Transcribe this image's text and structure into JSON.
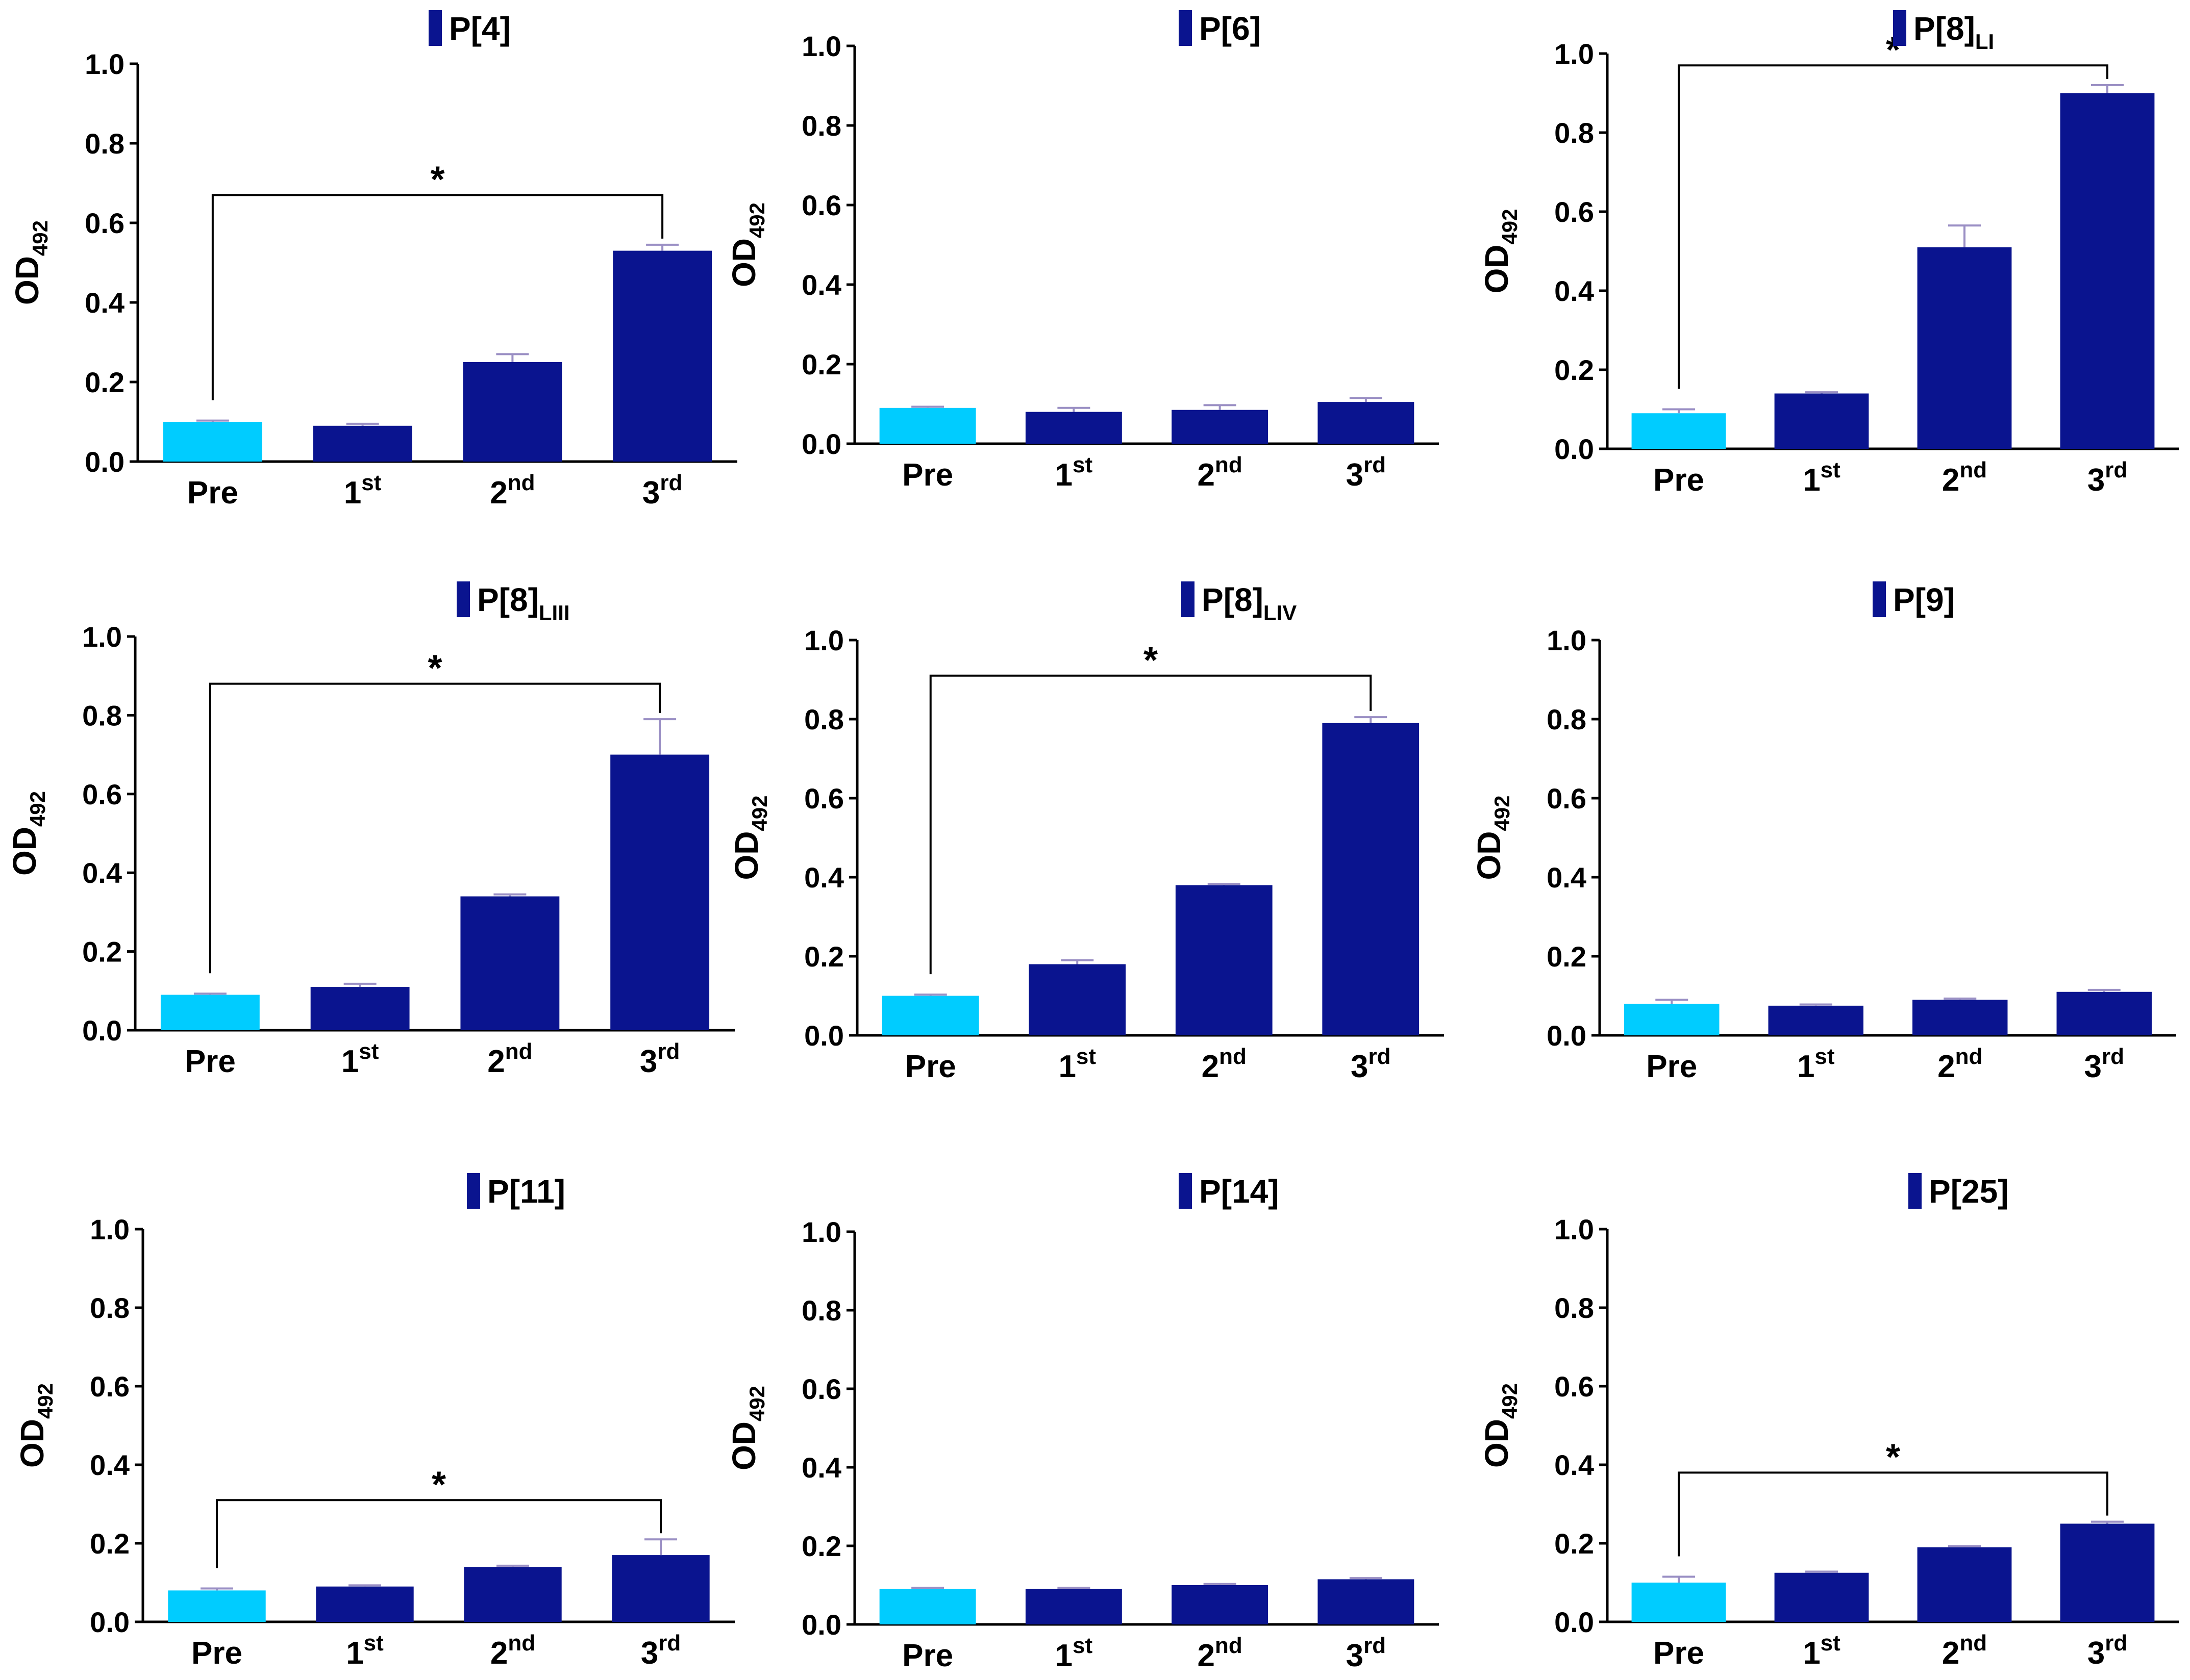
{
  "chart_data": [
    {
      "type": "bar",
      "legend": "P[4]",
      "legend_sub": "",
      "ylabel": "OD",
      "ylabel_sub": "492",
      "ylim": [
        0,
        1.0
      ],
      "yticks": [
        "0.0",
        "0.2",
        "0.4",
        "0.6",
        "0.8",
        "1.0"
      ],
      "categories": [
        {
          "base": "Pre",
          "sup": ""
        },
        {
          "base": "1",
          "sup": "st"
        },
        {
          "base": "2",
          "sup": "nd"
        },
        {
          "base": "3",
          "sup": "rd"
        }
      ],
      "values": [
        0.1,
        0.09,
        0.25,
        0.53
      ],
      "errors": [
        0.003,
        0.005,
        0.02,
        0.015
      ],
      "significance": {
        "from": 0,
        "to": 3,
        "y": 0.67,
        "label": "*"
      }
    },
    {
      "type": "bar",
      "legend": "P[6]",
      "legend_sub": "",
      "ylabel": "OD",
      "ylabel_sub": "492",
      "ylim": [
        0,
        1.0
      ],
      "yticks": [
        "0.0",
        "0.2",
        "0.4",
        "0.6",
        "0.8",
        "1.0"
      ],
      "categories": [
        {
          "base": "Pre",
          "sup": ""
        },
        {
          "base": "1",
          "sup": "st"
        },
        {
          "base": "2",
          "sup": "nd"
        },
        {
          "base": "3",
          "sup": "rd"
        }
      ],
      "values": [
        0.09,
        0.08,
        0.085,
        0.105
      ],
      "errors": [
        0.003,
        0.01,
        0.012,
        0.01
      ],
      "significance": null
    },
    {
      "type": "bar",
      "legend": "P[8]",
      "legend_sub": "LI",
      "ylabel": "OD",
      "ylabel_sub": "492",
      "ylim": [
        0,
        1.0
      ],
      "yticks": [
        "0.0",
        "0.2",
        "0.4",
        "0.6",
        "0.8",
        "1.0"
      ],
      "categories": [
        {
          "base": "Pre",
          "sup": ""
        },
        {
          "base": "1",
          "sup": "st"
        },
        {
          "base": "2",
          "sup": "nd"
        },
        {
          "base": "3",
          "sup": "rd"
        }
      ],
      "values": [
        0.09,
        0.14,
        0.51,
        0.9
      ],
      "errors": [
        0.01,
        0.003,
        0.055,
        0.02
      ],
      "significance": {
        "from": 0,
        "to": 3,
        "y": 0.97,
        "label": "*"
      }
    },
    {
      "type": "bar",
      "legend": "P[8]",
      "legend_sub": "LIII",
      "ylabel": "OD",
      "ylabel_sub": "492",
      "ylim": [
        0,
        1.0
      ],
      "yticks": [
        "0.0",
        "0.2",
        "0.4",
        "0.6",
        "0.8",
        "1.0"
      ],
      "categories": [
        {
          "base": "Pre",
          "sup": ""
        },
        {
          "base": "1",
          "sup": "st"
        },
        {
          "base": "2",
          "sup": "nd"
        },
        {
          "base": "3",
          "sup": "rd"
        }
      ],
      "values": [
        0.09,
        0.11,
        0.34,
        0.7
      ],
      "errors": [
        0.003,
        0.008,
        0.005,
        0.09
      ],
      "significance": {
        "from": 0,
        "to": 3,
        "y": 0.88,
        "label": "*"
      }
    },
    {
      "type": "bar",
      "legend": "P[8]",
      "legend_sub": "LIV",
      "ylabel": "OD",
      "ylabel_sub": "492",
      "ylim": [
        0,
        1.0
      ],
      "yticks": [
        "0.0",
        "0.2",
        "0.4",
        "0.6",
        "0.8",
        "1.0"
      ],
      "categories": [
        {
          "base": "Pre",
          "sup": ""
        },
        {
          "base": "1",
          "sup": "st"
        },
        {
          "base": "2",
          "sup": "nd"
        },
        {
          "base": "3",
          "sup": "rd"
        }
      ],
      "values": [
        0.1,
        0.18,
        0.38,
        0.79
      ],
      "errors": [
        0.003,
        0.01,
        0.003,
        0.015
      ],
      "significance": {
        "from": 0,
        "to": 3,
        "y": 0.91,
        "label": "*"
      }
    },
    {
      "type": "bar",
      "legend": "P[9]",
      "legend_sub": "",
      "ylabel": "OD",
      "ylabel_sub": "492",
      "ylim": [
        0,
        1.0
      ],
      "yticks": [
        "0.0",
        "0.2",
        "0.4",
        "0.6",
        "0.8",
        "1.0"
      ],
      "categories": [
        {
          "base": "Pre",
          "sup": ""
        },
        {
          "base": "1",
          "sup": "st"
        },
        {
          "base": "2",
          "sup": "nd"
        },
        {
          "base": "3",
          "sup": "rd"
        }
      ],
      "values": [
        0.08,
        0.075,
        0.09,
        0.11
      ],
      "errors": [
        0.01,
        0.003,
        0.003,
        0.005
      ],
      "significance": null
    },
    {
      "type": "bar",
      "legend": "P[11]",
      "legend_sub": "",
      "ylabel": "OD",
      "ylabel_sub": "492",
      "ylim": [
        0,
        1.0
      ],
      "yticks": [
        "0.0",
        "0.2",
        "0.4",
        "0.6",
        "0.8",
        "1.0"
      ],
      "categories": [
        {
          "base": "Pre",
          "sup": ""
        },
        {
          "base": "1",
          "sup": "st"
        },
        {
          "base": "2",
          "sup": "nd"
        },
        {
          "base": "3",
          "sup": "rd"
        }
      ],
      "values": [
        0.08,
        0.09,
        0.14,
        0.17
      ],
      "errors": [
        0.005,
        0.003,
        0.003,
        0.04
      ],
      "significance": {
        "from": 0,
        "to": 3,
        "y": 0.31,
        "label": "*"
      }
    },
    {
      "type": "bar",
      "legend": "P[14]",
      "legend_sub": "",
      "ylabel": "OD",
      "ylabel_sub": "492",
      "ylim": [
        0,
        1.0
      ],
      "yticks": [
        "0.0",
        "0.2",
        "0.4",
        "0.6",
        "0.8",
        "1.0"
      ],
      "categories": [
        {
          "base": "Pre",
          "sup": ""
        },
        {
          "base": "1",
          "sup": "st"
        },
        {
          "base": "2",
          "sup": "nd"
        },
        {
          "base": "3",
          "sup": "rd"
        }
      ],
      "values": [
        0.09,
        0.09,
        0.1,
        0.115
      ],
      "errors": [
        0.003,
        0.003,
        0.003,
        0.003
      ],
      "significance": null
    },
    {
      "type": "bar",
      "legend": "P[25]",
      "legend_sub": "",
      "ylabel": "OD",
      "ylabel_sub": "492",
      "ylim": [
        0,
        1.0
      ],
      "yticks": [
        "0.0",
        "0.2",
        "0.4",
        "0.6",
        "0.8",
        "1.0"
      ],
      "categories": [
        {
          "base": "Pre",
          "sup": ""
        },
        {
          "base": "1",
          "sup": "st"
        },
        {
          "base": "2",
          "sup": "nd"
        },
        {
          "base": "3",
          "sup": "rd"
        }
      ],
      "values": [
        0.1,
        0.125,
        0.19,
        0.25
      ],
      "errors": [
        0.015,
        0.003,
        0.003,
        0.005
      ],
      "significance": {
        "from": 0,
        "to": 3,
        "y": 0.38,
        "label": "*"
      }
    }
  ],
  "colors": {
    "pre_bar": "#00ccff",
    "bar": "#0a148f",
    "legend_swatch": "#0a148f",
    "error_bar": "#9a8fc4"
  }
}
